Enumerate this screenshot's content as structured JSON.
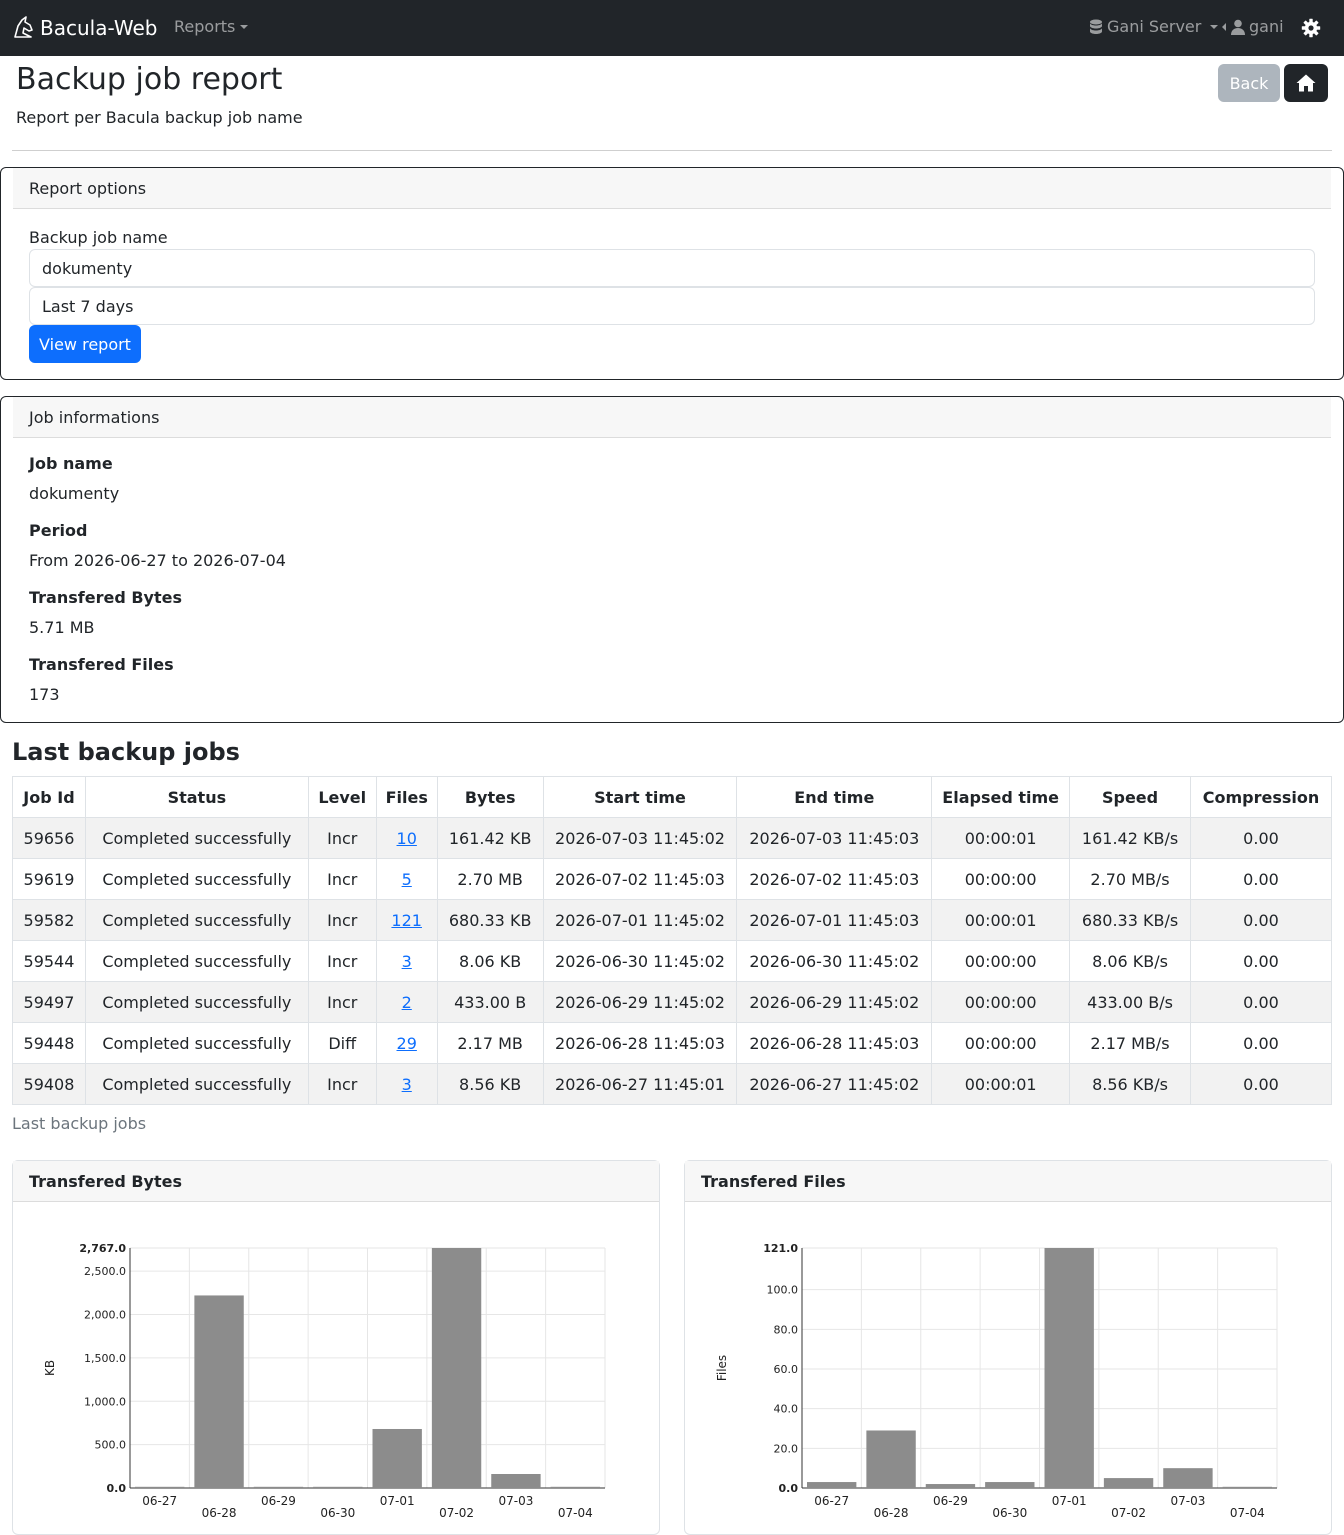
{
  "navbar": {
    "brand": "Bacula-Web",
    "reports": "Reports",
    "server": "Gani Server",
    "user": "gani"
  },
  "header": {
    "title": "Backup job report",
    "subtitle": "Report per Bacula backup job name",
    "back": "Back"
  },
  "options": {
    "title": "Report options",
    "job_label": "Backup job name",
    "job_value": "dokumenty",
    "period_value": "Last 7 days",
    "submit": "View report"
  },
  "info": {
    "title": "Job informations",
    "job_name_label": "Job name",
    "job_name": "dokumenty",
    "period_label": "Period",
    "period": "From 2026-06-27 to 2026-07-04",
    "bytes_label": "Transfered Bytes",
    "bytes": "5.71 MB",
    "files_label": "Transfered Files",
    "files": "173"
  },
  "jobs": {
    "title": "Last backup jobs",
    "caption": "Last backup jobs",
    "columns": [
      "Job Id",
      "Status",
      "Level",
      "Files",
      "Bytes",
      "Start time",
      "End time",
      "Elapsed time",
      "Speed",
      "Compression"
    ],
    "rows": [
      [
        "59656",
        "Completed successfully",
        "Incr",
        "10",
        "161.42 KB",
        "2026-07-03 11:45:02",
        "2026-07-03 11:45:03",
        "00:00:01",
        "161.42 KB/s",
        "0.00"
      ],
      [
        "59619",
        "Completed successfully",
        "Incr",
        "5",
        "2.70 MB",
        "2026-07-02 11:45:03",
        "2026-07-02 11:45:03",
        "00:00:00",
        "2.70 MB/s",
        "0.00"
      ],
      [
        "59582",
        "Completed successfully",
        "Incr",
        "121",
        "680.33 KB",
        "2026-07-01 11:45:02",
        "2026-07-01 11:45:03",
        "00:00:01",
        "680.33 KB/s",
        "0.00"
      ],
      [
        "59544",
        "Completed successfully",
        "Incr",
        "3",
        "8.06 KB",
        "2026-06-30 11:45:02",
        "2026-06-30 11:45:02",
        "00:00:00",
        "8.06 KB/s",
        "0.00"
      ],
      [
        "59497",
        "Completed successfully",
        "Incr",
        "2",
        "433.00 B",
        "2026-06-29 11:45:02",
        "2026-06-29 11:45:02",
        "00:00:00",
        "433.00 B/s",
        "0.00"
      ],
      [
        "59448",
        "Completed successfully",
        "Diff",
        "29",
        "2.17 MB",
        "2026-06-28 11:45:03",
        "2026-06-28 11:45:03",
        "00:00:00",
        "2.17 MB/s",
        "0.00"
      ],
      [
        "59408",
        "Completed successfully",
        "Incr",
        "3",
        "8.56 KB",
        "2026-06-27 11:45:01",
        "2026-06-27 11:45:02",
        "00:00:01",
        "8.56 KB/s",
        "0.00"
      ]
    ]
  },
  "chart_data": [
    {
      "type": "bar",
      "title": "Transfered Bytes",
      "ylabel": "KB",
      "xlabel": "",
      "categories": [
        "06-27",
        "06-28",
        "06-29",
        "06-30",
        "07-01",
        "07-02",
        "07-03",
        "07-04"
      ],
      "values": [
        8.6,
        2220,
        0.4,
        8.1,
        680.3,
        2767,
        161.4,
        0
      ],
      "yticks": [
        "0.0",
        "500.0",
        "1,000.0",
        "1,500.0",
        "2,000.0",
        "2,500.0",
        "2,767.0"
      ],
      "ytick_values": [
        0,
        500,
        1000,
        1500,
        2000,
        2500,
        2767
      ],
      "ylim": [
        0,
        2767
      ],
      "grid": true,
      "bar_color": "#8c8c8c"
    },
    {
      "type": "bar",
      "title": "Transfered Files",
      "ylabel": "Files",
      "xlabel": "",
      "categories": [
        "06-27",
        "06-28",
        "06-29",
        "06-30",
        "07-01",
        "07-02",
        "07-03",
        "07-04"
      ],
      "values": [
        3,
        29,
        2,
        3,
        121,
        5,
        10,
        0
      ],
      "yticks": [
        "0.0",
        "20.0",
        "40.0",
        "60.0",
        "80.0",
        "100.0",
        "121.0"
      ],
      "ytick_values": [
        0,
        20,
        40,
        60,
        80,
        100,
        121
      ],
      "ylim": [
        0,
        121
      ],
      "grid": true,
      "bar_color": "#8c8c8c"
    }
  ]
}
